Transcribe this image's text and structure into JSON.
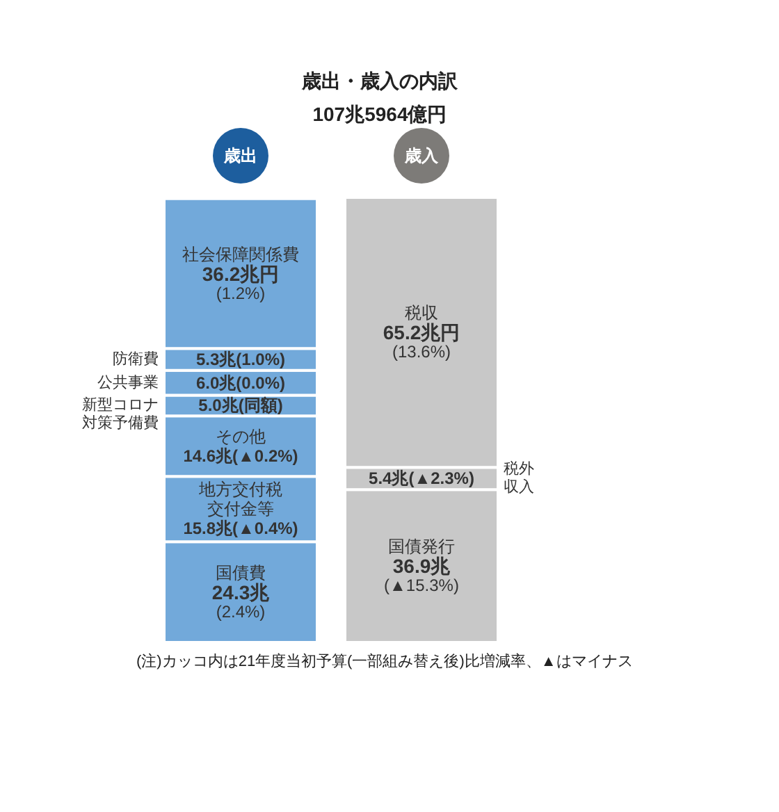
{
  "chart_data": {
    "type": "bar",
    "title": "歳出・歳入の内訳",
    "subtitle": "107兆5964億円",
    "categories": [
      "歳出",
      "歳入"
    ],
    "stacked": true,
    "legend": false,
    "grid": false,
    "tick_labels": "x",
    "series": [
      {
        "name": "国債費",
        "color": "#72a9da",
        "values": [
          24.3,
          null
        ],
        "value_labels": [
          "24.3兆(2.4%)",
          null
        ]
      },
      {
        "name": "地方交付税交付金等",
        "color": "#72a9da",
        "values": [
          15.8,
          null
        ],
        "value_labels": [
          "15.8兆(▲0.4%)",
          null
        ]
      },
      {
        "name": "その他",
        "color": "#72a9da",
        "values": [
          14.6,
          null
        ],
        "value_labels": [
          "14.6兆(▲0.2%)",
          null
        ]
      },
      {
        "name": "新型コロナ対策予備費",
        "color": "#72a9da",
        "values": [
          5.0,
          null
        ],
        "value_labels": [
          "5.0兆(同額)",
          null
        ]
      },
      {
        "name": "公共事業",
        "color": "#72a9da",
        "values": [
          6.0,
          null
        ],
        "value_labels": [
          "6.0兆(0.0%)",
          null
        ]
      },
      {
        "name": "防衛費",
        "color": "#72a9da",
        "values": [
          5.3,
          null
        ],
        "value_labels": [
          "5.3兆(1.0%)",
          null
        ]
      },
      {
        "name": "社会保障関係費",
        "color": "#72a9da",
        "values": [
          36.2,
          null
        ],
        "value_labels": [
          "36.2兆円(1.2%)",
          null
        ]
      },
      {
        "name": "国債発行",
        "color": "#c8c8c8",
        "values": [
          null,
          36.9
        ],
        "value_labels": [
          null,
          "36.9兆(▲15.3%)"
        ]
      },
      {
        "name": "税外収入",
        "color": "#c8c8c8",
        "values": [
          null,
          5.4
        ],
        "value_labels": [
          null,
          "5.4兆(▲2.3%)"
        ]
      },
      {
        "name": "税収",
        "color": "#c8c8c8",
        "values": [
          null,
          65.2
        ],
        "value_labels": [
          null,
          "65.2兆円(13.6%)"
        ]
      }
    ],
    "annotations": [
      "(注)カッコ内は21年度当初予算(一部組み替え後)比増減率、▲はマイナス"
    ]
  }
}
